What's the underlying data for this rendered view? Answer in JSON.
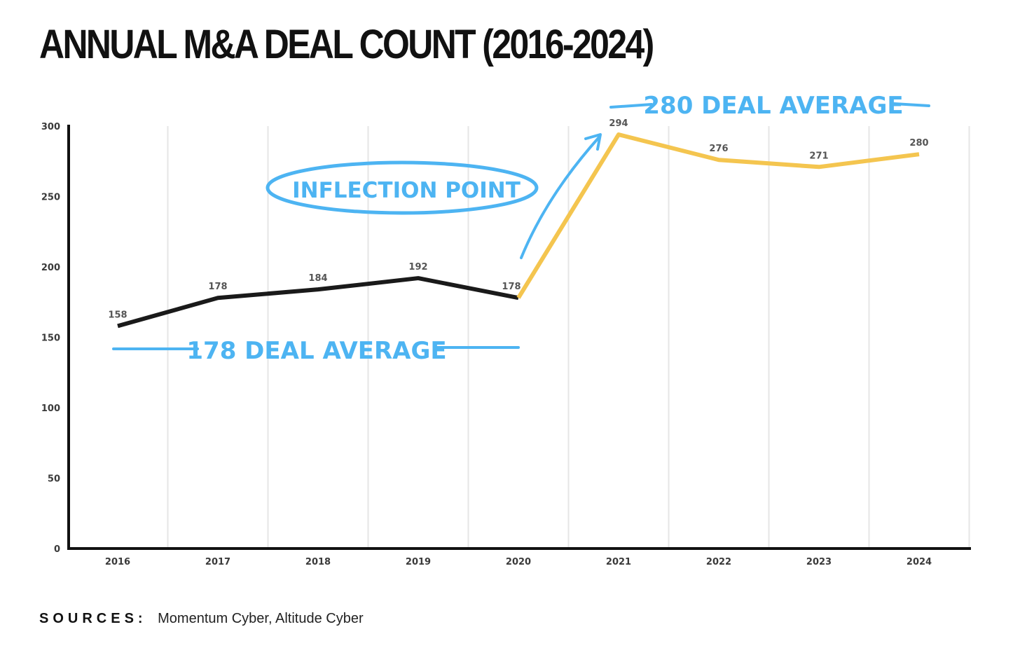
{
  "title": "ANNUAL M&A DEAL COUNT (2016-2024)",
  "sources": {
    "label": "SOURCES:",
    "text": "Momentum Cyber, Altitude Cyber"
  },
  "colors": {
    "before": "#1a1a1a",
    "after": "#f4c54f",
    "annotation": "#4db4f2",
    "grid": "#e6e6e6",
    "axis": "#111111"
  },
  "chart_data": {
    "type": "line",
    "categories": [
      "2016",
      "2017",
      "2018",
      "2019",
      "2020",
      "2021",
      "2022",
      "2023",
      "2024"
    ],
    "values": [
      158,
      178,
      184,
      192,
      178,
      294,
      276,
      271,
      280
    ],
    "data_labels": [
      "158",
      "178",
      "184",
      "192",
      "178",
      "294",
      "276",
      "271",
      "280"
    ],
    "yticks": [
      "0",
      "50",
      "100",
      "150",
      "200",
      "250",
      "300"
    ],
    "ylim": [
      0,
      300
    ],
    "grid": "vertical",
    "segments": [
      {
        "from": "2016",
        "to": "2020",
        "color": "#1a1a1a"
      },
      {
        "from": "2020",
        "to": "2024",
        "color": "#f4c54f"
      }
    ],
    "annotations": {
      "inflection": "INFLECTION POINT",
      "avg_before": "178 DEAL AVERAGE",
      "avg_after": "280 DEAL AVERAGE"
    }
  }
}
